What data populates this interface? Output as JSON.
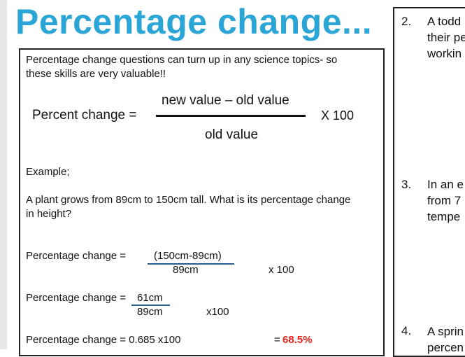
{
  "title": "Percentage change...",
  "intro": [
    "Percentage change questions can turn up in any science topics- so",
    "these skills are very valuable!!"
  ],
  "formula": {
    "lhs": "Percent change =",
    "numerator": "new value – old value",
    "denominator": "old value",
    "multiplier": "X 100"
  },
  "example_label": "Example;",
  "example_question": [
    "A plant grows from 89cm to 150cm tall. What is its percentage change",
    "in height?"
  ],
  "step1": {
    "label": "Percentage change =",
    "numerator": "(150cm-89cm)",
    "denominator": "89cm",
    "multiplier": "x 100"
  },
  "step2": {
    "label": "Percentage change =",
    "numerator": "61cm",
    "denominator": "89cm",
    "multiplier": "x100"
  },
  "step3": {
    "label": "Percentage change = 0.685 x100",
    "equals": "=",
    "result": "68.5%"
  },
  "right_questions": [
    {
      "num": "2.",
      "lines": [
        "A todd",
        "their pe",
        "workin"
      ]
    },
    {
      "num": "3.",
      "lines": [
        "In an e",
        "from 7",
        "tempe"
      ]
    },
    {
      "num": "4.",
      "lines": [
        "A sprin",
        "percen"
      ]
    }
  ],
  "colors": {
    "title": "#2aa5d6",
    "result": "#e8221c",
    "underline": "#2a5f8f"
  }
}
